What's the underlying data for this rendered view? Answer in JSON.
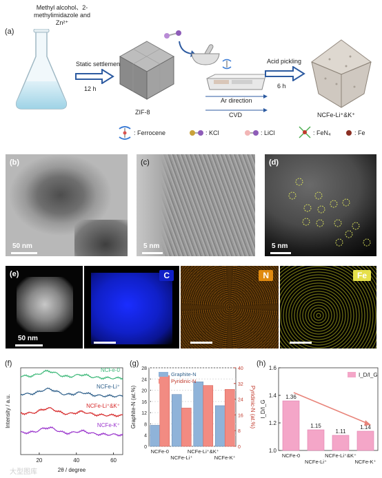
{
  "panel_a": {
    "label": "(a)",
    "flask_text_1": "Methyl alcohol、2-",
    "flask_text_2": "methylimidazole and",
    "flask_text_3": "Zn²⁺",
    "step1_label": "Static settlement",
    "step1_time": "12 h",
    "zif_label": "ZIF-8",
    "ar_label": "Ar direction",
    "cvd_label": "CVD",
    "step3_label": "Acid pickling",
    "step3_time": "6 h",
    "product_label": "NCFe-Li⁺&K⁺",
    "legend": [
      {
        "name": "Ferrocene",
        "text": ": Ferrocene"
      },
      {
        "name": "KCl",
        "text": ": KCl"
      },
      {
        "name": "LiCl",
        "text": ": LiCl"
      },
      {
        "name": "FeN4",
        "text": ": FeN₄"
      },
      {
        "name": "Fe",
        "text": ": Fe"
      }
    ]
  },
  "panel_b": {
    "label": "(b)",
    "scale": "50 nm"
  },
  "panel_c": {
    "label": "(c)",
    "scale": "5 nm"
  },
  "panel_d": {
    "label": "(d)",
    "scale": "5 nm"
  },
  "panel_e": {
    "label": "(e)",
    "scale": "50 nm",
    "maps": [
      "C",
      "N",
      "Fe"
    ]
  },
  "chart_data": [
    {
      "panel": "(f)",
      "type": "line",
      "xlabel": "2θ / degree",
      "ylabel": "Intensity / a.u.",
      "xlim": [
        10,
        65
      ],
      "xticks": [
        "20",
        "40",
        "60"
      ],
      "series": [
        {
          "name": "NCFe-0",
          "color": "#3cb878"
        },
        {
          "name": "NCFe-Li⁺",
          "color": "#2e5f8a"
        },
        {
          "name": "NCFe-Li⁺&K⁺",
          "color": "#d62728"
        },
        {
          "name": "NCFe-K⁺",
          "color": "#9932cc"
        }
      ]
    },
    {
      "panel": "(g)",
      "type": "bar",
      "categories": [
        "NCFe-0",
        "NCFe-Li⁺",
        "NCFe-Li⁺&K⁺",
        "NCFe-K⁺"
      ],
      "series": [
        {
          "name": "Graphite-N",
          "axis": "left",
          "values": [
            7.5,
            18.5,
            23,
            14.5
          ],
          "color": "#8fb3d9"
        },
        {
          "name": "Pyridinic-N",
          "axis": "right",
          "values": [
            36,
            19.5,
            31,
            29
          ],
          "color": "#f28b82"
        }
      ],
      "ylabel": "Graphite-N (at.%)",
      "y2label": "Pyridinic-N (at.%)",
      "ylim": [
        0,
        28
      ],
      "y2lim": [
        0,
        40
      ],
      "yticks": [
        "0",
        "4",
        "8",
        "12",
        "16",
        "20",
        "24",
        "28"
      ],
      "y2ticks": [
        "0",
        "8",
        "16",
        "24",
        "32",
        "40"
      ]
    },
    {
      "panel": "(h)",
      "type": "bar",
      "categories": [
        "NCFe-0",
        "NCFe-Li⁺",
        "NCFe-Li⁺&K⁺",
        "NCFe-K⁺"
      ],
      "series": [
        {
          "name": "I_D/I_G",
          "values": [
            1.36,
            1.15,
            1.11,
            1.14
          ],
          "color": "#f4a6c8"
        }
      ],
      "data_labels": [
        "1.36",
        "1.15",
        "1.11",
        "1.14"
      ],
      "ylim": [
        1.0,
        1.6
      ],
      "yticks": [
        "1.0",
        "1.2",
        "1.4",
        "1.6"
      ],
      "ylabel": "I_D/I_G",
      "legend_text": "I_D/I_G"
    }
  ],
  "watermark": "大型图库"
}
